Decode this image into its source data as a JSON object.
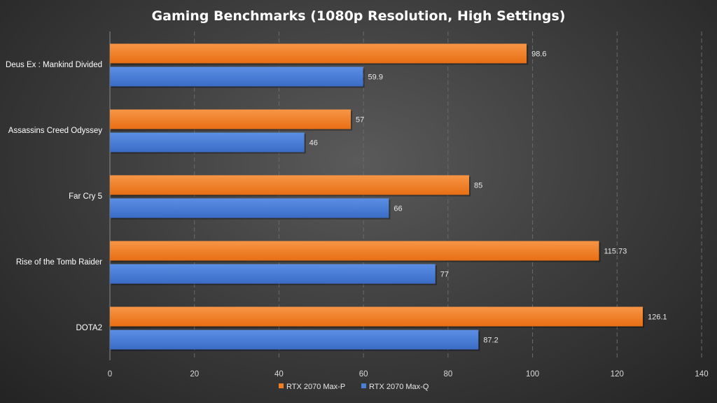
{
  "chart_data": {
    "type": "bar",
    "orientation": "horizontal",
    "title": "Gaming Benchmarks (1080p Resolution, High Settings)",
    "categories": [
      "Deus Ex : Mankind Divided",
      "Assassins Creed Odyssey",
      "Far Cry 5",
      "Rise of the Tomb Raider",
      "DOTA2"
    ],
    "series": [
      {
        "name": "RTX 2070 Max-P",
        "color": "#f07c24",
        "values": [
          98.6,
          57,
          85,
          115.73,
          126.1
        ],
        "labels": [
          "98.6",
          "57",
          "85",
          "115.73",
          "126.1"
        ]
      },
      {
        "name": "RTX 2070 Max-Q",
        "color": "#4a7fd6",
        "values": [
          59.9,
          46,
          66,
          77,
          87.2
        ],
        "labels": [
          "59.9",
          "46",
          "66",
          "77",
          "87.2"
        ]
      }
    ],
    "xlim": [
      0,
      140
    ],
    "xticks": [
      "0",
      "20",
      "40",
      "60",
      "80",
      "100",
      "120",
      "140"
    ],
    "xlabel": "",
    "ylabel": "",
    "grid": true,
    "legend_position": "bottom"
  }
}
